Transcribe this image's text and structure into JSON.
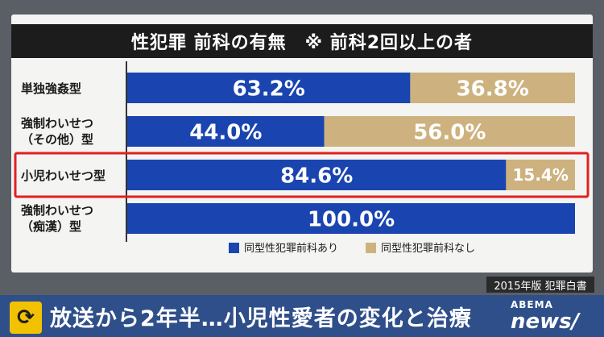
{
  "title": "性犯罪 前科の有無　※ 前科2回以上の者",
  "source": "2015年版 犯罪白書",
  "ticker": {
    "icon": "refresh-icon",
    "text": "放送から2年半…小児性愛者の変化と治療"
  },
  "logo": {
    "top": "ABEMA",
    "bottom": "news/"
  },
  "colors": {
    "with_record": "#1a44b0",
    "without_record": "#cdb27f",
    "highlight": "#e02020"
  },
  "chart_data": {
    "type": "bar",
    "orientation": "horizontal",
    "stacked": true,
    "title": "性犯罪 前科の有無　※ 前科2回以上の者",
    "categories": [
      [
        "単独強姦型"
      ],
      [
        "強制わいせつ",
        "（その他）型"
      ],
      [
        "小児わいせつ型"
      ],
      [
        "強制わいせつ",
        "（痴漢）型"
      ]
    ],
    "series": [
      {
        "name": "同型性犯罪前科あり",
        "values": [
          63.2,
          44.0,
          84.6,
          100.0
        ],
        "labels": [
          "63.2%",
          "44.0%",
          "84.6%",
          "100.0%"
        ]
      },
      {
        "name": "同型性犯罪前科なし",
        "values": [
          36.8,
          56.0,
          15.4,
          0
        ],
        "labels": [
          "36.8%",
          "56.0%",
          "15.4%",
          ""
        ]
      }
    ],
    "xlim": [
      0,
      100
    ],
    "highlighted_category": "小児わいせつ型",
    "legend_position": "bottom"
  }
}
